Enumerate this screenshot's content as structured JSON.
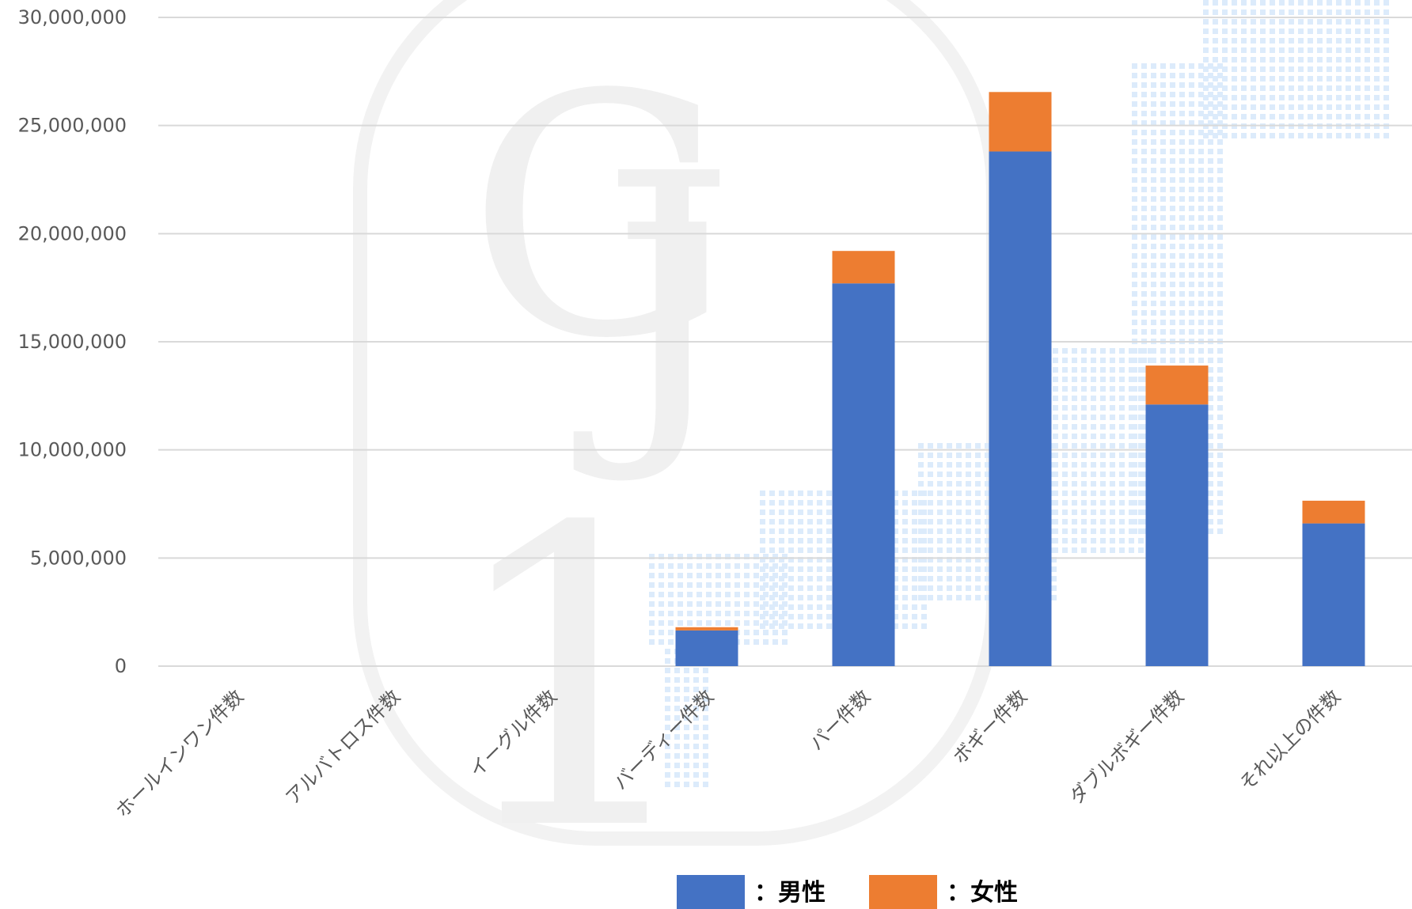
{
  "chart_data": {
    "type": "bar",
    "stacked": true,
    "categories": [
      "ホールインワン件数",
      "アルバトロス件数",
      "イーグル件数",
      "バーディー件数",
      "パー件数",
      "ボギー件数",
      "ダブルボギー件数",
      "それ以上の件数"
    ],
    "series": [
      {
        "name": "：男性",
        "color": "#4472c4",
        "values": [
          0,
          0,
          0,
          1650000,
          17700000,
          23800000,
          12100000,
          6600000
        ]
      },
      {
        "name": "：女性",
        "color": "#ed7d31",
        "values": [
          0,
          0,
          0,
          150000,
          1500000,
          2750000,
          1800000,
          1050000
        ]
      }
    ],
    "ylim": [
      0,
      30000000
    ],
    "yticks": [
      0,
      5000000,
      10000000,
      15000000,
      20000000,
      25000000,
      30000000
    ],
    "ytick_labels": [
      "0",
      "5,000,000",
      "10,000,000",
      "15,000,000",
      "20,000,000",
      "25,000,000",
      "30,000,000"
    ],
    "grid": true,
    "legend": "bottom",
    "gridline_color": "#d9d9d9"
  }
}
